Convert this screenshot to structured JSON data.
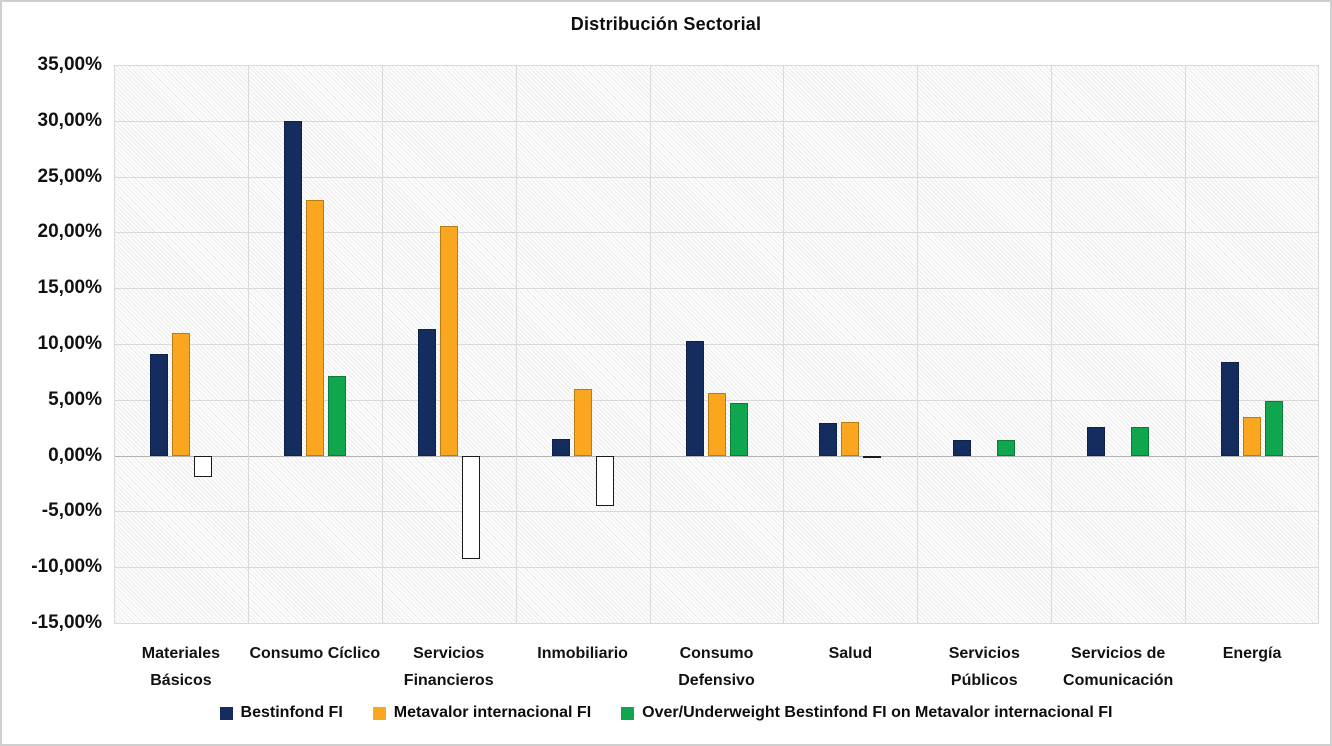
{
  "title": "Distribución Sectorial",
  "chart_data": {
    "type": "bar",
    "title": "Distribución Sectorial",
    "categories": [
      "Materiales Básicos",
      "Consumo Cíclico",
      "Servicios Financieros",
      "Inmobiliario",
      "Consumo Defensivo",
      "Salud",
      "Servicios Públicos",
      "Servicios de Comunicación",
      "Energía"
    ],
    "series": [
      {
        "name": "Bestinfond FI",
        "color": "#152D5E",
        "values": [
          9.1,
          30.0,
          11.3,
          1.5,
          10.3,
          2.9,
          1.4,
          2.6,
          8.4
        ]
      },
      {
        "name": "Metavalor internacional FI",
        "color": "#FAA61E",
        "values": [
          11.0,
          22.9,
          20.6,
          6.0,
          5.6,
          3.0,
          0.0,
          0.0,
          3.5
        ]
      },
      {
        "name": "Over/Underweight Bestinfond FI on Metavalor internacional FI",
        "color": "#0FA64E",
        "negative_color": "#FFFFFF",
        "values": [
          -1.9,
          7.1,
          -9.3,
          -4.5,
          4.7,
          -0.1,
          1.4,
          2.6,
          4.9
        ]
      }
    ],
    "ylim": [
      -15,
      35
    ],
    "ytick_step": 5,
    "ytick_labels": [
      "35,00%",
      "30,00%",
      "25,00%",
      "20,00%",
      "15,00%",
      "10,00%",
      "5,00%",
      "0,00%",
      "-5,00%",
      "-10,00%",
      "-15,00%"
    ],
    "grid": true,
    "legend_position": "bottom",
    "plot_background": "hatched-diagonal"
  },
  "colors": {
    "series1": "#152D5E",
    "series2": "#FAA61E",
    "series3_positive": "#0FA64E",
    "series3_negative": "#FFFFFF",
    "gridline": "#d9d9d9",
    "zero_line": "#b3b3b3",
    "text": "#111111",
    "frame_border": "#cfcfcf"
  }
}
